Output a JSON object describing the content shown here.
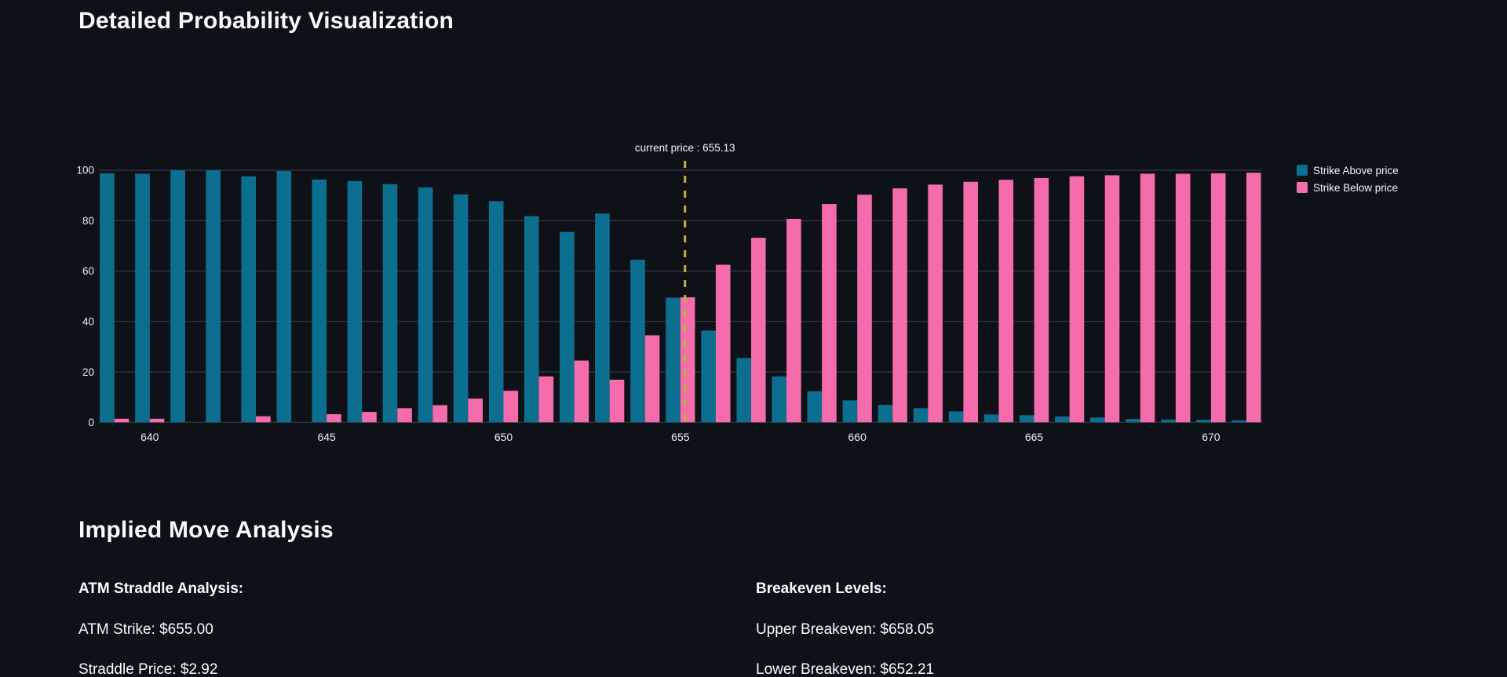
{
  "page": {
    "title": "Detailed Probability Visualization",
    "section_title": "Implied Move Analysis"
  },
  "colors": {
    "background": "#0e1117",
    "heading_text": "#fafafa",
    "axis_text": "#e8ebf2",
    "gridline": "#3a4152",
    "above_bar": "#0d6f90",
    "below_bar": "#f46cab",
    "current_price_line": "#bdb52a"
  },
  "chart_data": {
    "type": "bar",
    "title": "",
    "xlabel": "",
    "ylabel": "",
    "grid": true,
    "legend_position": "right",
    "ylim": [
      0,
      100
    ],
    "yticks": [
      0,
      20,
      40,
      60,
      80,
      100
    ],
    "xticks": [
      640,
      645,
      650,
      655,
      660,
      665,
      670
    ],
    "x": [
      639,
      640,
      641,
      642,
      643,
      644,
      645,
      646,
      647,
      648,
      649,
      650,
      651,
      652,
      653,
      654,
      655,
      656,
      657,
      658,
      659,
      660,
      661,
      662,
      663,
      664,
      665,
      666,
      667,
      668,
      669,
      670,
      671
    ],
    "series": [
      {
        "name": "Strike Above price",
        "color": "#0d6f90",
        "values": [
          98.8,
          98.6,
          100,
          100,
          97.6,
          99.7,
          96.3,
          95.7,
          94.5,
          93.2,
          90.4,
          87.7,
          81.8,
          75.5,
          82.8,
          64.5,
          49.4,
          36.4,
          25.5,
          18.2,
          12.3,
          8.7,
          6.9,
          5.6,
          4.3,
          3.1,
          2.8,
          2.3,
          1.9,
          1.3,
          1.1,
          1.0,
          0.8
        ]
      },
      {
        "name": "Strike Below price",
        "color": "#f46cab",
        "values": [
          1.4,
          1.4,
          0,
          0,
          2.4,
          0,
          3.2,
          4.1,
          5.6,
          6.8,
          9.4,
          12.5,
          18.2,
          24.5,
          16.9,
          34.5,
          49.6,
          62.5,
          73.2,
          80.7,
          86.6,
          90.3,
          92.8,
          94.3,
          95.4,
          96.2,
          96.9,
          97.6,
          98.0,
          98.6,
          98.6,
          98.8,
          99.0
        ]
      }
    ],
    "annotation": {
      "text": "current price : 655.13",
      "price": 655.13,
      "line_color": "#bdb52a"
    }
  },
  "analysis": {
    "left": {
      "heading": "ATM Straddle Analysis:",
      "lines": [
        "ATM Strike: $655.00",
        "Straddle Price: $2.92"
      ]
    },
    "right": {
      "heading": "Breakeven Levels:",
      "lines": [
        "Upper Breakeven: $658.05",
        "Lower Breakeven: $652.21"
      ]
    }
  }
}
